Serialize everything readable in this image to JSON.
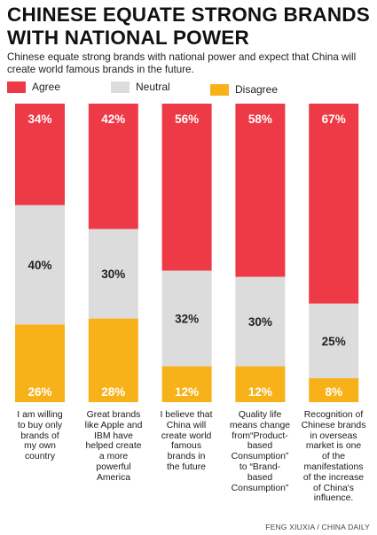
{
  "header": {
    "title": "CHINESE EQUATE STRONG BRANDS WITH NATIONAL POWER",
    "subtitle": "Chinese equate strong brands with national power and expect that China will create world famous brands in the future."
  },
  "legend": [
    {
      "label": "Agree",
      "color": "#ee3a46"
    },
    {
      "label": "Neutral",
      "color": "#dcdcdc"
    },
    {
      "label": "Disagree",
      "color": "#f8b219"
    }
  ],
  "chart_data": {
    "type": "bar",
    "stacked": true,
    "orientation": "vertical",
    "ylim": [
      0,
      100
    ],
    "grid": false,
    "legend_position": "top-left",
    "categories": [
      "I am willing to buy only brands of my own country",
      "Great brands like Apple and IBM have helped create a more powerful America",
      "I believe that China will create world famous brands in the future",
      "Quality life means change from \"Product-based Consumption\" to \"Brand-based Consumption\"",
      "Recognition of Chinese brands in overseas market is one of the manifestations of the increase of China's influence."
    ],
    "series": [
      {
        "name": "Agree",
        "color": "#ee3a46",
        "values": [
          34,
          42,
          56,
          58,
          67
        ],
        "labels": [
          "34%",
          "42%",
          "56%",
          "58%",
          "67%"
        ]
      },
      {
        "name": "Neutral",
        "color": "#dcdcdc",
        "values": [
          40,
          30,
          32,
          30,
          25
        ],
        "labels": [
          "40%",
          "30%",
          "32%",
          "30%",
          "25%"
        ]
      },
      {
        "name": "Disagree",
        "color": "#f8b219",
        "values": [
          26,
          28,
          12,
          12,
          8
        ],
        "labels": [
          "26%",
          "28%",
          "12%",
          "12%",
          "8%"
        ]
      }
    ]
  },
  "category_labels_display": [
    "I am willing\nto buy only\nbrands of\nmy own\ncountry",
    "Great brands\nlike Apple and\nIBM have\nhelped create\na more\npowerful\nAmerica",
    "I believe that\nChina will\ncreate world\nfamous\nbrands in\nthe future",
    "Quality life\nmeans change\nfrom“Product-\nbased\nConsumption”\nto “Brand-\nbased\nConsumption”",
    "Recognition of\nChinese brands\nin overseas\nmarket is one\nof the\nmanifestations\nof the increase\nof China's\ninfluence."
  ],
  "source": "FENG XIUXIA / CHINA DAILY"
}
